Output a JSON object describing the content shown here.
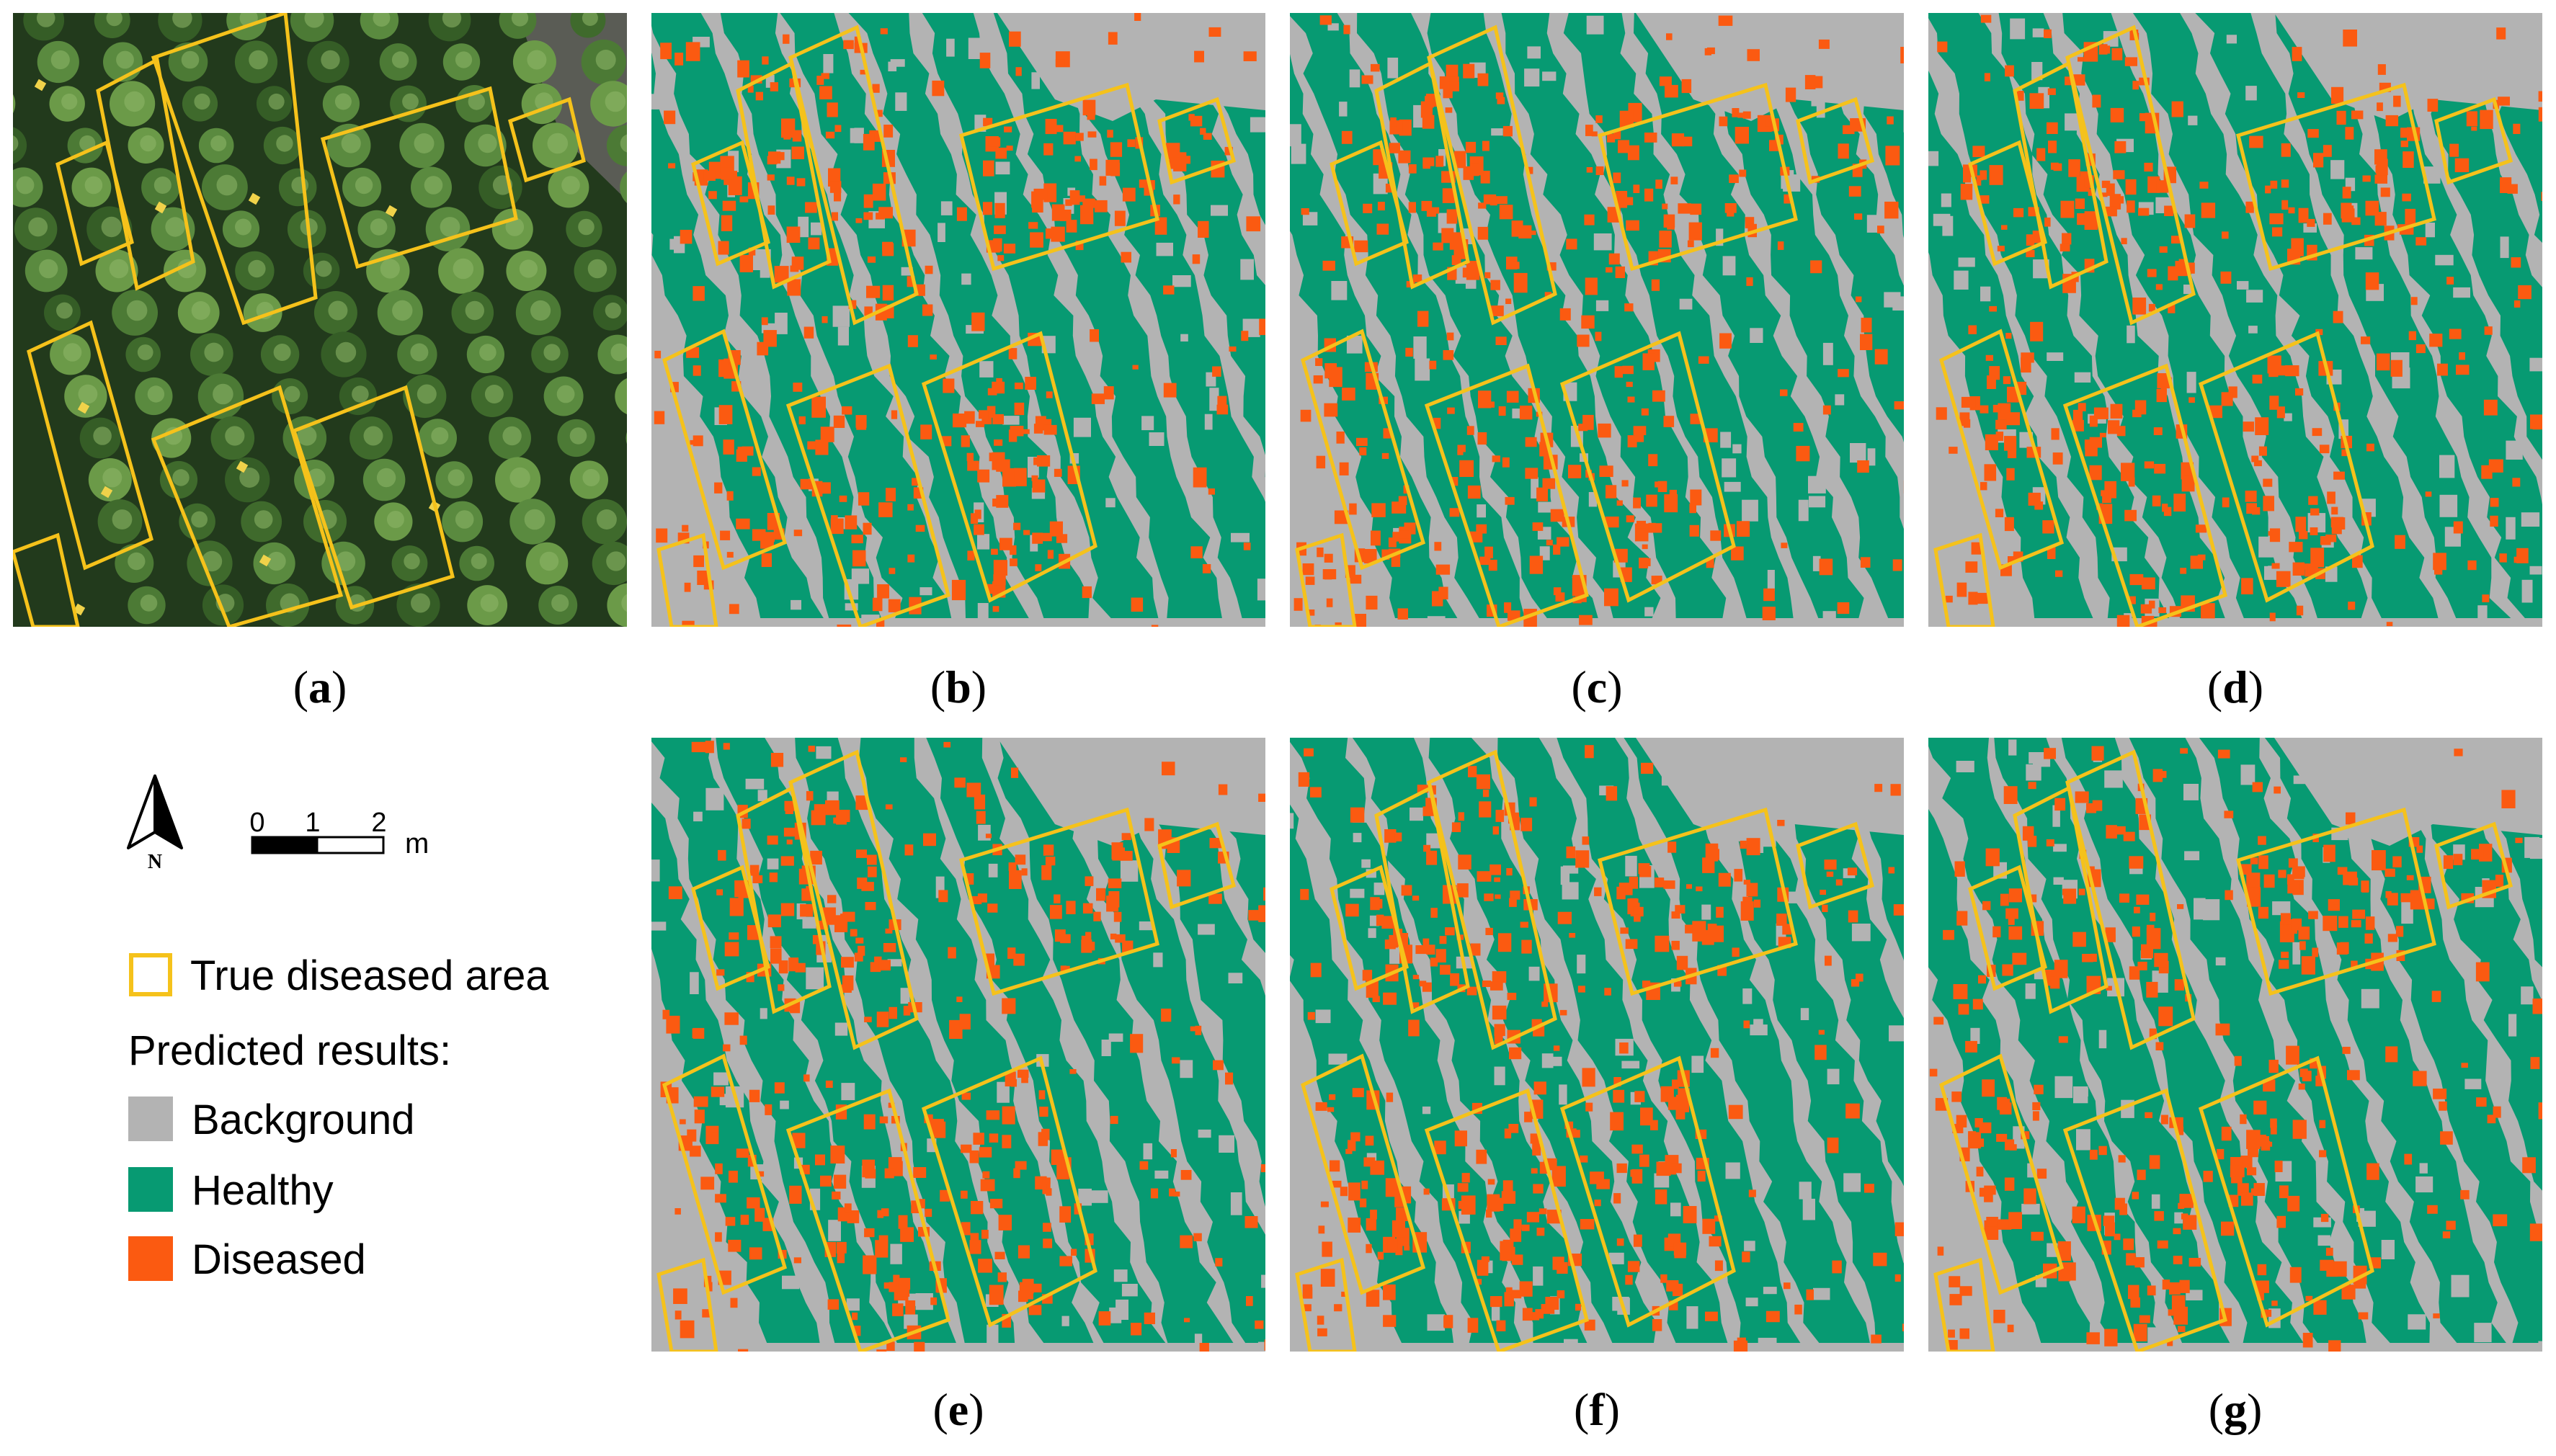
{
  "figure": {
    "panel_labels": [
      "a",
      "b",
      "c",
      "d",
      "e",
      "f",
      "g"
    ],
    "colors": {
      "background": "#b3b3b3",
      "healthy": "#079a72",
      "diseased": "#fb5a11",
      "true_diseased_box": "#f5c21b",
      "aerial_dark": "#223a1c",
      "aerial_leaf": "#4c7a35"
    }
  },
  "legend": {
    "north_label": "N",
    "scale": {
      "ticks": [
        "0",
        "1",
        "2"
      ],
      "unit": "m"
    },
    "items": {
      "true_area": "True diseased area",
      "predicted_heading": "Predicted results:",
      "background": "Background",
      "healthy": "Healthy",
      "diseased": "Diseased"
    }
  }
}
